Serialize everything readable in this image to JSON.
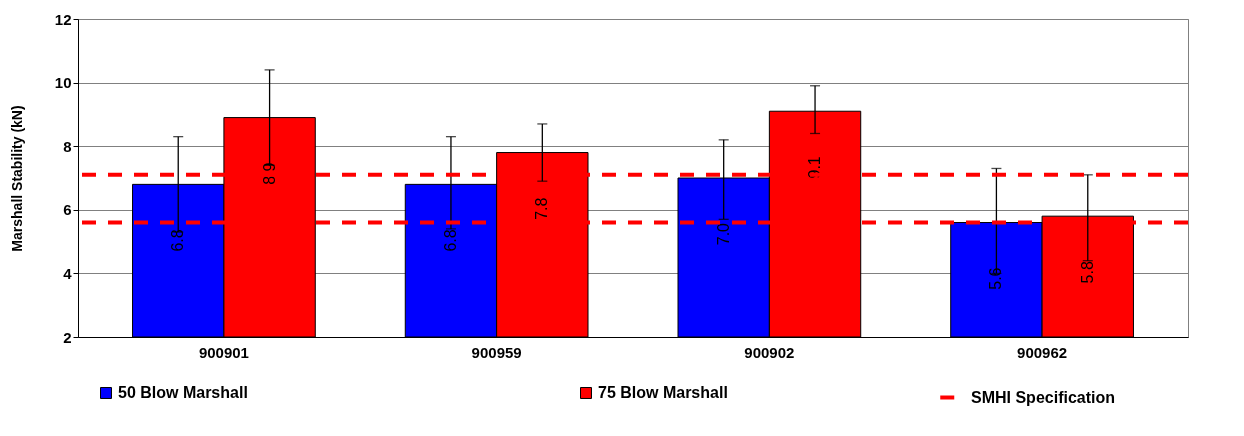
{
  "chart_data": {
    "type": "bar",
    "ylabel": "Marshall Stability (kN)",
    "categories": [
      "900901",
      "900959",
      "900902",
      "900962"
    ],
    "series": [
      {
        "name": "50 Blow Marshall",
        "color": "#0000ff",
        "values": [
          6.8,
          6.8,
          7.0,
          5.6
        ],
        "errors": [
          [
            5.3,
            8.3
          ],
          [
            5.4,
            8.3
          ],
          [
            5.7,
            8.2
          ],
          [
            4.0,
            7.3
          ]
        ]
      },
      {
        "name": "75 Blow Marshall",
        "color": "#ff0000",
        "values": [
          8.9,
          7.8,
          9.1,
          5.8
        ],
        "errors": [
          [
            7.4,
            10.4
          ],
          [
            6.9,
            8.7
          ],
          [
            8.4,
            9.9
          ],
          [
            4.4,
            7.1
          ]
        ]
      }
    ],
    "value_labels": [
      [
        "6.8",
        "6.8",
        "7.0",
        "5.6"
      ],
      [
        "8.9",
        "7.8",
        "9.1",
        "5.8"
      ]
    ],
    "ylim": [
      2,
      12
    ],
    "yticks": [
      2,
      4,
      6,
      8,
      10,
      12
    ],
    "grid": "y",
    "legend": "bottom",
    "ref_lines": [
      {
        "axis": "y",
        "value": 7.1,
        "label": "SMHI Specification",
        "color": "#ff0000",
        "line_style": "dashed"
      },
      {
        "axis": "y",
        "value": 5.6,
        "label": null,
        "color": "#ff0000",
        "line_style": "dashed"
      }
    ]
  }
}
